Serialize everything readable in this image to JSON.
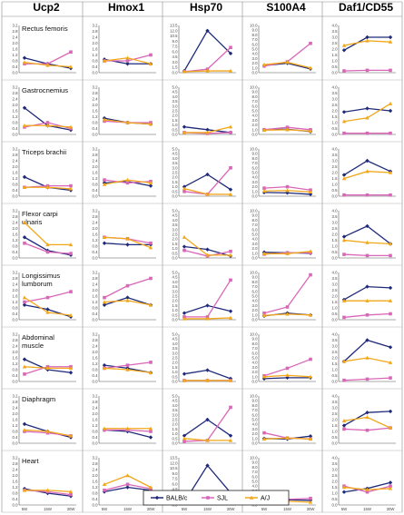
{
  "chart_data": {
    "type": "line",
    "genes": [
      "Ucp2",
      "Hmox1",
      "Hsp70",
      "S100A4",
      "Daf1/CD55"
    ],
    "muscles": [
      "Rectus femoris",
      "Gastrocnemius",
      "Triceps brachii",
      "Flexor carpi ulnaris",
      "Longissimus lumborum",
      "Abdominal muscle",
      "Diaphragm",
      "Heart"
    ],
    "x": [
      "5W",
      "15W",
      "30W"
    ],
    "series_names": [
      "BALB/c",
      "SJL",
      "A/J"
    ],
    "colors": {
      "BALB/c": "#1f2a7a",
      "SJL": "#d966b8",
      "A/J": "#f2a71b"
    },
    "markers": {
      "BALB/c": "diamond",
      "SJL": "square",
      "A/J": "triangle"
    },
    "y_ticks": {
      "Ucp2": [
        "0.0",
        "0.4",
        "0.8",
        "1.2",
        "1.6",
        "2.0",
        "2.4",
        "2.8",
        "3.2"
      ],
      "Hmox1": [
        "0.0",
        "0.4",
        "0.8",
        "1.2",
        "1.6",
        "2.0",
        "2.4",
        "2.8",
        "3.2"
      ],
      "Hsp70": [
        [
          "0.0",
          "1.5",
          "3.0",
          "4.5",
          "6.0",
          "7.5",
          "9.0",
          "10.5",
          "12.0",
          "13.5"
        ],
        [
          "0.0",
          "0.5",
          "1.0",
          "1.5",
          "2.0",
          "2.5",
          "3.0",
          "3.5",
          "4.0",
          "4.5",
          "5.0"
        ],
        [
          "0.0",
          "0.5",
          "1.0",
          "1.5",
          "2.0",
          "2.5",
          "3.0",
          "3.5",
          "4.0",
          "4.5",
          "5.0"
        ],
        [
          "0.0",
          "0.5",
          "1.0",
          "1.5",
          "2.0",
          "2.5",
          "3.0",
          "3.5",
          "4.0",
          "4.5",
          "5.0"
        ],
        [
          "0.0",
          "0.5",
          "1.0",
          "1.5",
          "2.0",
          "2.5",
          "3.0",
          "3.5",
          "4.0",
          "4.5",
          "5.0"
        ],
        [
          "0.0",
          "0.5",
          "1.0",
          "1.5",
          "2.0",
          "2.5",
          "3.0",
          "3.5",
          "4.0",
          "4.5",
          "5.0"
        ],
        [
          "0.0",
          "0.5",
          "1.0",
          "1.5",
          "2.0",
          "2.5",
          "3.0",
          "3.5",
          "4.0",
          "4.5",
          "5.0"
        ],
        [
          "0.0",
          "1.5",
          "3.0",
          "4.5",
          "6.0",
          "7.5",
          "9.0",
          "10.5",
          "12.0",
          "13.5"
        ]
      ],
      "S100A4": [
        "0.0",
        "1.0",
        "2.0",
        "3.0",
        "4.0",
        "5.0",
        "6.0",
        "7.0",
        "8.0",
        "9.0",
        "10.0"
      ],
      "Daf1/CD55": [
        "0.0",
        "0.5",
        "1.0",
        "1.5",
        "2.0",
        "2.5",
        "3.0",
        "3.5",
        "4.0"
      ]
    },
    "panels": {
      "Rectus femoris": {
        "Ucp2": {
          "BALB/c": [
            1.0,
            0.6,
            0.3
          ],
          "SJL": [
            0.6,
            0.6,
            1.4
          ],
          "A/J": [
            0.7,
            0.5,
            0.4
          ]
        },
        "Hmox1": {
          "BALB/c": [
            0.9,
            0.6,
            0.6
          ],
          "SJL": [
            0.8,
            0.8,
            1.2
          ],
          "A/J": [
            0.8,
            1.0,
            0.6
          ]
        },
        "Hsp70": {
          "BALB/c": [
            0.5,
            12.0,
            5.5
          ],
          "SJL": [
            0.3,
            1.0,
            7.2
          ],
          "A/J": [
            0.3,
            0.5,
            0.5
          ]
        },
        "S100A4": {
          "BALB/c": [
            1.5,
            2.0,
            0.8
          ],
          "SJL": [
            1.4,
            2.3,
            6.2
          ],
          "A/J": [
            1.7,
            2.2,
            1.0
          ]
        },
        "Daf1/CD55": {
          "BALB/c": [
            1.9,
            3.0,
            3.0
          ],
          "SJL": [
            0.15,
            0.2,
            0.2
          ],
          "A/J": [
            2.3,
            2.7,
            2.6
          ]
        }
      },
      "Gastrocnemius": {
        "Ucp2": {
          "BALB/c": [
            1.8,
            0.6,
            0.3
          ],
          "SJL": [
            0.5,
            0.8,
            0.4
          ],
          "A/J": [
            0.6,
            0.6,
            0.5
          ]
        },
        "Hmox1": {
          "BALB/c": [
            1.1,
            0.8,
            0.7
          ],
          "SJL": [
            0.9,
            0.8,
            0.8
          ],
          "A/J": [
            1.0,
            0.8,
            0.7
          ]
        },
        "Hsp70": {
          "BALB/c": [
            0.8,
            0.5,
            0.2
          ],
          "SJL": [
            0.2,
            0.1,
            0.2
          ],
          "A/J": [
            0.2,
            0.2,
            0.8
          ]
        },
        "S100A4": {
          "BALB/c": [
            1.0,
            1.1,
            0.6
          ],
          "SJL": [
            1.0,
            1.5,
            1.0
          ],
          "A/J": [
            0.9,
            1.0,
            0.7
          ]
        },
        "Daf1/CD55": {
          "BALB/c": [
            1.9,
            2.2,
            2.0
          ],
          "SJL": [
            0.1,
            0.1,
            0.1
          ],
          "A/J": [
            1.1,
            1.4,
            2.6
          ]
        }
      },
      "Triceps brachii": {
        "Ucp2": {
          "BALB/c": [
            1.3,
            0.6,
            0.4
          ],
          "SJL": [
            0.6,
            0.7,
            0.7
          ],
          "A/J": [
            0.6,
            0.6,
            0.5
          ]
        },
        "Hmox1": {
          "BALB/c": [
            0.9,
            1.0,
            0.7
          ],
          "SJL": [
            1.1,
            0.9,
            1.0
          ],
          "A/J": [
            0.8,
            1.1,
            0.9
          ]
        },
        "Hsp70": {
          "BALB/c": [
            1.0,
            2.3,
            0.7
          ],
          "SJL": [
            0.5,
            0.2,
            3.0
          ],
          "A/J": [
            0.8,
            0.2,
            0.2
          ]
        },
        "S100A4": {
          "BALB/c": [
            0.8,
            0.7,
            0.4
          ],
          "SJL": [
            1.7,
            2.0,
            1.3
          ],
          "A/J": [
            1.1,
            1.2,
            0.9
          ]
        },
        "Daf1/CD55": {
          "BALB/c": [
            1.8,
            3.0,
            2.1
          ],
          "SJL": [
            0.1,
            0.1,
            0.1
          ],
          "A/J": [
            1.5,
            2.1,
            2.0
          ]
        }
      },
      "Flexor carpi ulnaris": {
        "Ucp2": {
          "BALB/c": [
            1.4,
            0.5,
            0.2
          ],
          "SJL": [
            1.0,
            0.4,
            0.3
          ],
          "A/J": [
            2.4,
            0.9,
            0.9
          ]
        },
        "Hmox1": {
          "BALB/c": [
            1.0,
            0.9,
            0.9
          ],
          "SJL": [
            1.4,
            1.3,
            1.0
          ],
          "A/J": [
            1.4,
            1.3,
            0.7
          ]
        },
        "Hsp70": {
          "BALB/c": [
            1.2,
            0.9,
            0.2
          ],
          "SJL": [
            0.8,
            0.2,
            0.7
          ],
          "A/J": [
            2.2,
            0.3,
            0.3
          ]
        },
        "S100A4": {
          "BALB/c": [
            1.2,
            1.1,
            1.0
          ],
          "SJL": [
            0.8,
            1.1,
            1.1
          ],
          "A/J": [
            0.9,
            0.9,
            1.4
          ]
        },
        "Daf1/CD55": {
          "BALB/c": [
            1.8,
            2.7,
            1.2
          ],
          "SJL": [
            0.3,
            0.2,
            0.2
          ],
          "A/J": [
            1.5,
            1.3,
            1.2
          ]
        }
      },
      "Longissimus lumborum": {
        "Ucp2": {
          "BALB/c": [
            1.0,
            0.7,
            0.2
          ],
          "SJL": [
            1.2,
            1.5,
            1.9
          ],
          "A/J": [
            1.5,
            0.5,
            0.3
          ]
        },
        "Hmox1": {
          "BALB/c": [
            1.0,
            1.5,
            1.0
          ],
          "SJL": [
            1.5,
            2.3,
            2.8
          ],
          "A/J": [
            1.2,
            1.3,
            1.0
          ]
        },
        "Hsp70": {
          "BALB/c": [
            0.7,
            1.5,
            0.9
          ],
          "SJL": [
            0.3,
            0.3,
            4.2
          ],
          "A/J": [
            0.1,
            0.1,
            0.2
          ]
        },
        "S100A4": {
          "BALB/c": [
            0.8,
            1.4,
            1.0
          ],
          "SJL": [
            1.4,
            2.7,
            9.5
          ],
          "A/J": [
            0.9,
            1.2,
            1.0
          ]
        },
        "Daf1/CD55": {
          "BALB/c": [
            1.7,
            2.8,
            2.7
          ],
          "SJL": [
            0.2,
            0.4,
            0.5
          ],
          "A/J": [
            1.6,
            1.6,
            1.6
          ]
        }
      },
      "Abdominal muscle": {
        "Ucp2": {
          "BALB/c": [
            1.5,
            0.8,
            0.6
          ],
          "SJL": [
            0.5,
            1.0,
            1.0
          ],
          "A/J": [
            1.0,
            0.9,
            0.9
          ]
        },
        "Hmox1": {
          "BALB/c": [
            1.1,
            0.9,
            0.6
          ],
          "SJL": [
            0.9,
            1.1,
            1.3
          ],
          "A/J": [
            0.9,
            0.8,
            0.6
          ]
        },
        "Hsp70": {
          "BALB/c": [
            0.8,
            1.2,
            0.3
          ],
          "SJL": [
            0.1,
            0.1,
            0.1
          ],
          "A/J": [
            0.1,
            0.1,
            0.1
          ]
        },
        "S100A4": {
          "BALB/c": [
            0.6,
            0.8,
            0.8
          ],
          "SJL": [
            1.2,
            2.8,
            4.7
          ],
          "A/J": [
            1.0,
            1.3,
            1.0
          ]
        },
        "Daf1/CD55": {
          "BALB/c": [
            1.7,
            3.5,
            2.9
          ],
          "SJL": [
            0.1,
            0.2,
            0.3
          ],
          "A/J": [
            1.7,
            2.0,
            1.6
          ]
        }
      },
      "Diaphragm": {
        "Ucp2": {
          "BALB/c": [
            1.3,
            0.8,
            0.4
          ],
          "SJL": [
            0.8,
            0.7,
            0.5
          ],
          "A/J": [
            0.9,
            0.8,
            0.5
          ]
        },
        "Hmox1": {
          "BALB/c": [
            0.9,
            0.8,
            0.4
          ],
          "SJL": [
            0.9,
            0.9,
            0.8
          ],
          "A/J": [
            1.0,
            1.0,
            1.0
          ]
        },
        "Hsp70": {
          "BALB/c": [
            0.8,
            2.5,
            0.8
          ],
          "SJL": [
            0.2,
            0.3,
            3.8
          ],
          "A/J": [
            0.5,
            0.3,
            0.3
          ]
        },
        "S100A4": {
          "BALB/c": [
            1.0,
            0.9,
            1.5
          ],
          "SJL": [
            2.2,
            1.1,
            0.9
          ],
          "A/J": [
            0.9,
            1.1,
            0.9
          ]
        },
        "Daf1/CD55": {
          "BALB/c": [
            1.5,
            2.6,
            2.7
          ],
          "SJL": [
            1.2,
            1.1,
            1.3
          ],
          "A/J": [
            1.9,
            2.2,
            1.3
          ]
        }
      },
      "Heart": {
        "Ucp2": {
          "BALB/c": [
            1.1,
            0.8,
            0.6
          ],
          "SJL": [
            1.0,
            0.9,
            0.7
          ],
          "A/J": [
            1.0,
            1.0,
            0.9
          ]
        },
        "Hmox1": {
          "BALB/c": [
            0.9,
            1.2,
            1.0
          ],
          "SJL": [
            1.0,
            1.4,
            1.1
          ],
          "A/J": [
            1.4,
            2.0,
            1.2
          ]
        },
        "Hsp70": {
          "BALB/c": [
            0.8,
            11.3,
            3.5
          ],
          "SJL": [
            0.5,
            0.4,
            0.5
          ],
          "A/J": [
            0.5,
            0.5,
            0.5
          ]
        },
        "S100A4": {
          "BALB/c": [
            1.0,
            1.1,
            1.0
          ],
          "SJL": [
            1.0,
            1.2,
            1.4
          ],
          "A/J": [
            0.8,
            0.8,
            0.6
          ]
        },
        "Daf1/CD55": {
          "BALB/c": [
            1.1,
            1.4,
            1.9
          ],
          "SJL": [
            1.6,
            1.1,
            1.6
          ],
          "A/J": [
            1.5,
            1.3,
            1.4
          ]
        }
      }
    },
    "legend_position": "bottom-center"
  }
}
